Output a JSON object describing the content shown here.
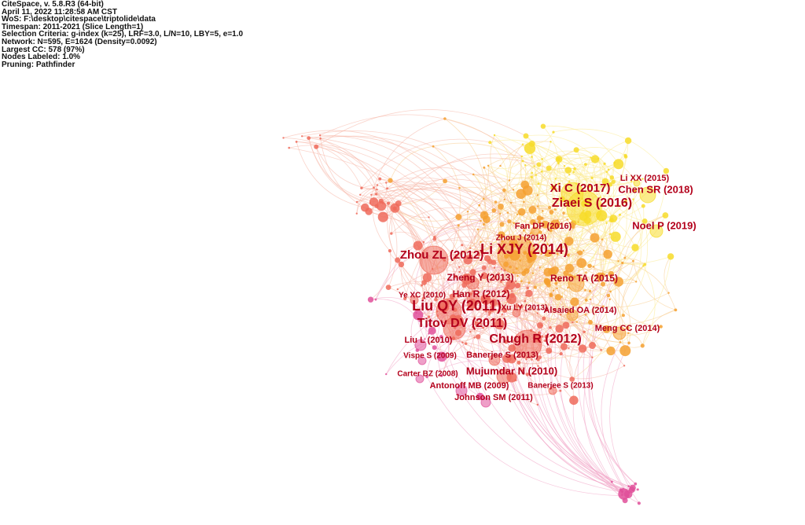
{
  "header": {
    "lines": [
      "CiteSpace, v. 5.8.R3 (64-bit)",
      "April 11, 2022 11:28:58 AM CST",
      "WoS: F:\\desktop\\citespace\\triptolide\\data",
      "Timespan: 2011-2021 (Slice Length=1)",
      "Selection Criteria: g-index (k=25), LRF=3.0, L/N=10, LBY=5, e=1.0",
      "Network: N=595, E=1624 (Density=0.0092)",
      "Largest CC: 578 (97%)",
      "Nodes Labeled: 1.0%",
      "Pruning: Pathfinder"
    ]
  },
  "nodes": [
    {
      "label": "Li XX (2015)"
    },
    {
      "label": "Xi C (2017)"
    },
    {
      "label": "Chen SR (2018)"
    },
    {
      "label": "Ziaei S (2016)"
    },
    {
      "label": "Noel P (2019)"
    },
    {
      "label": "Fan DP (2016)"
    },
    {
      "label": "Zhou J (2014)"
    },
    {
      "label": "Li XJY (2014)"
    },
    {
      "label": "Zhou ZL (2012)"
    },
    {
      "label": "Zheng Y (2013)"
    },
    {
      "label": "Reno TA (2015)"
    },
    {
      "label": "Ye XC (2010)"
    },
    {
      "label": "Han R (2012)"
    },
    {
      "label": "Liu QY (2011)"
    },
    {
      "label": "Xu LY (2013)"
    },
    {
      "label": "Alsaied OA (2014)"
    },
    {
      "label": "Titov DV (2011)"
    },
    {
      "label": "Meng CC (2014)"
    },
    {
      "label": "Chugh R (2012)"
    },
    {
      "label": "Liu L (2010)"
    },
    {
      "label": "Vispe S (2009)"
    },
    {
      "label": "Banerjee S (2013)"
    },
    {
      "label": "Mujumdar N (2010)"
    },
    {
      "label": "Carter BZ (2008)"
    },
    {
      "label": "Antonoff MB (2009)"
    },
    {
      "label": "Banerjee S (2013)"
    },
    {
      "label": "Johnson SM (2011)"
    }
  ]
}
